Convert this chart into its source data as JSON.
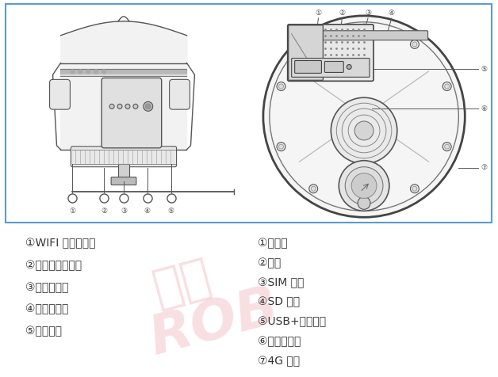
{
  "background_color": "#ffffff",
  "border_color": "#5b9bd5",
  "border_linewidth": 1.5,
  "watermark_line1": "飛馬",
  "watermark_line2": "ROB",
  "watermark_color": "#f0b8c0",
  "watermark_alpha": 0.45,
  "left_labels": [
    "①WIFI 连接指示灯",
    "②定位状态指示灯",
    "③网络指示灯",
    "④电量指示灯",
    "⑤电源开关"
  ],
  "right_labels": [
    "①防水帽",
    "②喭叭",
    "③SIM 卡槽",
    "④SD 卡槽",
    "⑤USB+充电接口",
    "⑥系统复位孔",
    "⑦4G 天线"
  ],
  "label_color": "#333333",
  "label_fontsize": 10,
  "fig_width": 6.28,
  "fig_height": 4.76
}
